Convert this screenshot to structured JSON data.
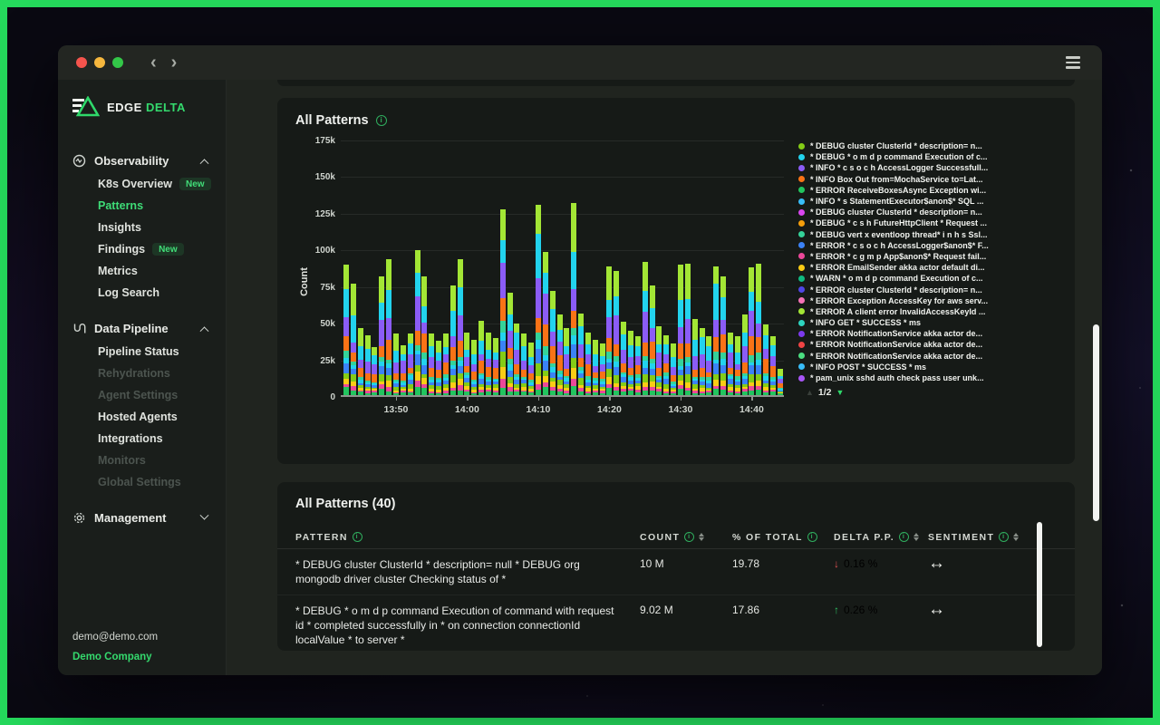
{
  "accent": "#34d96d",
  "icons": {
    "back": "‹",
    "forward": "›",
    "up_triangle": "▲",
    "down_triangle": "▼",
    "delta_up": "↑",
    "delta_down": "↓",
    "sentiment_neutral": "↔"
  },
  "titlebar": {
    "traffic_lights": [
      "#f5544d",
      "#f6b73e",
      "#33c748"
    ]
  },
  "sidebar": {
    "logo": {
      "brand_primary": "EDGE",
      "brand_secondary": "DELTA"
    },
    "sections": [
      {
        "label": "Observability",
        "icon": "pulse-icon",
        "expanded": true,
        "items": [
          {
            "label": "K8s Overview",
            "badge": "New",
            "state": "normal"
          },
          {
            "label": "Patterns",
            "badge": "",
            "state": "active"
          },
          {
            "label": "Insights",
            "badge": "",
            "state": "normal"
          },
          {
            "label": "Findings",
            "badge": "New",
            "state": "normal"
          },
          {
            "label": "Metrics",
            "badge": "",
            "state": "normal"
          },
          {
            "label": "Log Search",
            "badge": "",
            "state": "normal"
          }
        ]
      },
      {
        "label": "Data Pipeline",
        "icon": "pipeline-icon",
        "expanded": true,
        "items": [
          {
            "label": "Pipeline Status",
            "badge": "",
            "state": "normal"
          },
          {
            "label": "Rehydrations",
            "badge": "",
            "state": "disabled"
          },
          {
            "label": "Agent Settings",
            "badge": "",
            "state": "disabled"
          },
          {
            "label": "Hosted Agents",
            "badge": "",
            "state": "normal"
          },
          {
            "label": "Integrations",
            "badge": "",
            "state": "normal"
          },
          {
            "label": "Monitors",
            "badge": "",
            "state": "disabled"
          },
          {
            "label": "Global Settings",
            "badge": "",
            "state": "disabled"
          }
        ]
      },
      {
        "label": "Management",
        "icon": "gear-icon",
        "expanded": false,
        "items": []
      }
    ],
    "footer": {
      "email": "demo@demo.com",
      "company": "Demo Company"
    }
  },
  "chart_card": {
    "title": "All Patterns"
  },
  "chart_data": {
    "type": "bar",
    "stacked": true,
    "title": "All Patterns",
    "ylabel": "Count",
    "ylim": [
      0,
      175000
    ],
    "yticks": [
      "175k",
      "150k",
      "125k",
      "100k",
      "75k",
      "50k",
      "25k",
      "0"
    ],
    "xticks": [
      "13:50",
      "14:00",
      "14:10",
      "14:20",
      "14:30",
      "14:40"
    ],
    "x_start": "13:43",
    "x_interval_minutes": 1,
    "bar_totals_thousands": [
      89,
      76,
      46,
      41,
      33,
      81,
      93,
      42,
      34,
      42,
      99,
      81,
      42,
      37,
      42,
      75,
      93,
      43,
      38,
      51,
      43,
      39,
      127,
      70,
      49,
      42,
      36,
      130,
      98,
      71,
      55,
      46,
      131,
      56,
      43,
      38,
      35,
      88,
      85,
      50,
      44,
      40,
      91,
      75,
      47,
      41,
      35,
      89,
      90,
      52,
      46,
      40,
      88,
      81,
      43,
      40,
      55,
      87,
      90,
      48,
      40,
      18
    ],
    "stack_bottom_to_top": [
      {
        "color": "#22c55e",
        "fraction": 0.045
      },
      {
        "color": "#ec4899",
        "fraction": 0.03
      },
      {
        "color": "#facc15",
        "fraction": 0.04
      },
      {
        "color": "#84cc16",
        "fraction": 0.05
      },
      {
        "color": "#3b82f6",
        "fraction": 0.055
      },
      {
        "color": "#22d3ee",
        "fraction": 0.04
      },
      {
        "color": "#34d399",
        "fraction": 0.045
      },
      {
        "color": "#f97316",
        "fraction": 0.135
      },
      {
        "color": "#8b5cf6",
        "fraction": 0.16
      },
      {
        "color": "#22d3ee",
        "fraction": 0.18
      },
      {
        "color": "#a3e635",
        "fraction": 0.22
      }
    ],
    "legend_position": "right",
    "legend_page": "1/2",
    "legend": [
      {
        "color": "#84cc16",
        "label": "* DEBUG cluster ClusterId * description= n..."
      },
      {
        "color": "#22d3ee",
        "label": "* DEBUG * o m d p command Execution of c..."
      },
      {
        "color": "#8b5cf6",
        "label": "* INFO * c s o c h AccessLogger Successfull..."
      },
      {
        "color": "#f97316",
        "label": "* INFO Box Out from=MochaService to=Lat..."
      },
      {
        "color": "#22c55e",
        "label": "* ERROR ReceiveBoxesAsync Exception wi..."
      },
      {
        "color": "#38bdf8",
        "label": "* INFO * s StatementExecutor$anon$* SQL ..."
      },
      {
        "color": "#d946ef",
        "label": "* DEBUG cluster ClusterId * description= n..."
      },
      {
        "color": "#f59e0b",
        "label": "* DEBUG * c s h FutureHttpClient * Request ..."
      },
      {
        "color": "#34d399",
        "label": "* DEBUG vert x eventloop thread* i n h s Ssl..."
      },
      {
        "color": "#3b82f6",
        "label": "* ERROR * c s o c h AccessLogger$anon$* F..."
      },
      {
        "color": "#ec4899",
        "label": "* ERROR * c g m p App$anon$* Request fail..."
      },
      {
        "color": "#facc15",
        "label": "* ERROR EmailSender akka actor default di..."
      },
      {
        "color": "#10b981",
        "label": "* WARN * o m d p command Execution of c..."
      },
      {
        "color": "#4f46e5",
        "label": "* ERROR cluster ClusterId * description= n..."
      },
      {
        "color": "#f472b6",
        "label": "* ERROR Exception AccessKey for aws serv..."
      },
      {
        "color": "#a3e635",
        "label": "* ERROR A client error InvalidAccessKeyId ..."
      },
      {
        "color": "#2dd4bf",
        "label": "* INFO GET * SUCCESS * ms"
      },
      {
        "color": "#7c3aed",
        "label": "* ERROR NotificationService akka actor de..."
      },
      {
        "color": "#ef4444",
        "label": "* ERROR NotificationService akka actor de..."
      },
      {
        "color": "#4ade80",
        "label": "* ERROR NotificationService akka actor de..."
      },
      {
        "color": "#38bdf8",
        "label": "* INFO POST * SUCCESS * ms"
      },
      {
        "color": "#a855f7",
        "label": "* pam_unix sshd auth check pass user unk..."
      }
    ]
  },
  "table_card": {
    "title": "All Patterns (40)",
    "columns": [
      {
        "label": "PATTERN",
        "info": true,
        "sortable": false
      },
      {
        "label": "COUNT",
        "info": true,
        "sortable": true
      },
      {
        "label": "% OF TOTAL",
        "info": true,
        "sortable": false
      },
      {
        "label": "DELTA P.P.",
        "info": true,
        "sortable": true
      },
      {
        "label": "SENTIMENT",
        "info": true,
        "sortable": true
      }
    ],
    "rows": [
      {
        "pattern": "* DEBUG cluster ClusterId * description= null * DEBUG org mongodb driver cluster Checking status of *",
        "count": "10 M",
        "pct_of_total": "19.78",
        "delta": "0.16 %",
        "delta_direction": "down",
        "sentiment": "neutral"
      },
      {
        "pattern": "* DEBUG * o m d p command Execution of command with request id * completed successfully in * on connection connectionId localValue * to server *",
        "count": "9.02 M",
        "pct_of_total": "17.86",
        "delta": "0.26 %",
        "delta_direction": "up",
        "sentiment": "neutral"
      }
    ]
  }
}
